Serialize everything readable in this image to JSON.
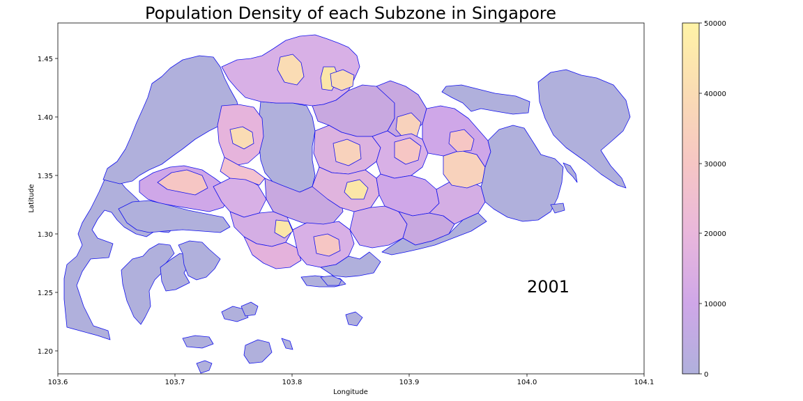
{
  "chart_data": {
    "type": "choropleth-map",
    "title": "Population Density of each Subzone in Singapore",
    "xlabel": "Longitude",
    "ylabel": "Latitude",
    "xlim": [
      103.6,
      104.1
    ],
    "ylim": [
      1.18,
      1.48
    ],
    "x_ticks": [
      "103.6",
      "103.7",
      "103.8",
      "103.9",
      "104.0",
      "104.1"
    ],
    "y_ticks": [
      "1.20",
      "1.25",
      "1.30",
      "1.35",
      "1.40",
      "1.45"
    ],
    "annotation": "2001",
    "colorbar": {
      "range": [
        0,
        50000
      ],
      "ticks": [
        "0",
        "10000",
        "20000",
        "30000",
        "40000",
        "50000"
      ],
      "colormap": "plasma (semi-transparent)",
      "colors": [
        "#b0b0dc",
        "#cfa7e8",
        "#e9b7dc",
        "#f6c6c4",
        "#fadcb4",
        "#fff3a6"
      ]
    },
    "boundary_color": "#0000ff",
    "low_density_fill": "#b0b0dc",
    "grid": false
  }
}
